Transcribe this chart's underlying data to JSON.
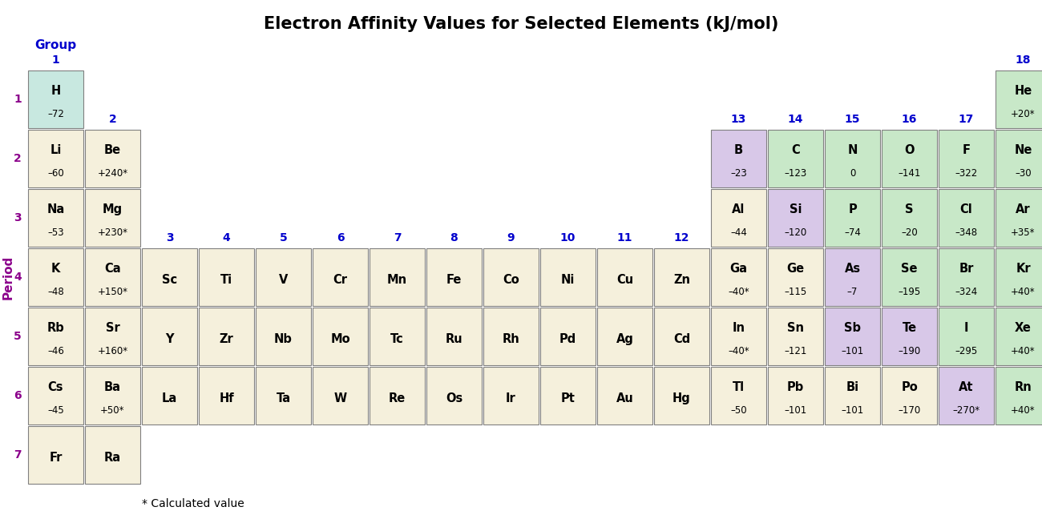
{
  "title": "Electron Affinity Values for Selected Elements (kJ/mol)",
  "title_fontsize": 15,
  "period_label": "Period",
  "group_label": "Group",
  "period_color": "#8B008B",
  "group_color": "#0000CD",
  "footnote": "* Calculated value",
  "elements": [
    {
      "symbol": "H",
      "value": "–72",
      "period": 1,
      "group": 1,
      "bg": "#C8E8E0"
    },
    {
      "symbol": "He",
      "value": "+20*",
      "period": 1,
      "group": 18,
      "bg": "#C8E8C8"
    },
    {
      "symbol": "Li",
      "value": "–60",
      "period": 2,
      "group": 1,
      "bg": "#F5F0DC"
    },
    {
      "symbol": "Be",
      "value": "+240*",
      "period": 2,
      "group": 2,
      "bg": "#F5F0DC"
    },
    {
      "symbol": "B",
      "value": "–23",
      "period": 2,
      "group": 13,
      "bg": "#D8C8E8"
    },
    {
      "symbol": "C",
      "value": "–123",
      "period": 2,
      "group": 14,
      "bg": "#C8E8C8"
    },
    {
      "symbol": "N",
      "value": "0",
      "period": 2,
      "group": 15,
      "bg": "#C8E8C8"
    },
    {
      "symbol": "O",
      "value": "–141",
      "period": 2,
      "group": 16,
      "bg": "#C8E8C8"
    },
    {
      "symbol": "F",
      "value": "–322",
      "period": 2,
      "group": 17,
      "bg": "#C8E8C8"
    },
    {
      "symbol": "Ne",
      "value": "–30",
      "period": 2,
      "group": 18,
      "bg": "#C8E8C8"
    },
    {
      "symbol": "Na",
      "value": "–53",
      "period": 3,
      "group": 1,
      "bg": "#F5F0DC"
    },
    {
      "symbol": "Mg",
      "value": "+230*",
      "period": 3,
      "group": 2,
      "bg": "#F5F0DC"
    },
    {
      "symbol": "Al",
      "value": "–44",
      "period": 3,
      "group": 13,
      "bg": "#F5F0DC"
    },
    {
      "symbol": "Si",
      "value": "–120",
      "period": 3,
      "group": 14,
      "bg": "#D8C8E8"
    },
    {
      "symbol": "P",
      "value": "–74",
      "period": 3,
      "group": 15,
      "bg": "#C8E8C8"
    },
    {
      "symbol": "S",
      "value": "–20",
      "period": 3,
      "group": 16,
      "bg": "#C8E8C8"
    },
    {
      "symbol": "Cl",
      "value": "–348",
      "period": 3,
      "group": 17,
      "bg": "#C8E8C8"
    },
    {
      "symbol": "Ar",
      "value": "+35*",
      "period": 3,
      "group": 18,
      "bg": "#C8E8C8"
    },
    {
      "symbol": "K",
      "value": "–48",
      "period": 4,
      "group": 1,
      "bg": "#F5F0DC"
    },
    {
      "symbol": "Ca",
      "value": "+150*",
      "period": 4,
      "group": 2,
      "bg": "#F5F0DC"
    },
    {
      "symbol": "Sc",
      "value": "",
      "period": 4,
      "group": 3,
      "bg": "#F5F0DC"
    },
    {
      "symbol": "Ti",
      "value": "",
      "period": 4,
      "group": 4,
      "bg": "#F5F0DC"
    },
    {
      "symbol": "V",
      "value": "",
      "period": 4,
      "group": 5,
      "bg": "#F5F0DC"
    },
    {
      "symbol": "Cr",
      "value": "",
      "period": 4,
      "group": 6,
      "bg": "#F5F0DC"
    },
    {
      "symbol": "Mn",
      "value": "",
      "period": 4,
      "group": 7,
      "bg": "#F5F0DC"
    },
    {
      "symbol": "Fe",
      "value": "",
      "period": 4,
      "group": 8,
      "bg": "#F5F0DC"
    },
    {
      "symbol": "Co",
      "value": "",
      "period": 4,
      "group": 9,
      "bg": "#F5F0DC"
    },
    {
      "symbol": "Ni",
      "value": "",
      "period": 4,
      "group": 10,
      "bg": "#F5F0DC"
    },
    {
      "symbol": "Cu",
      "value": "",
      "period": 4,
      "group": 11,
      "bg": "#F5F0DC"
    },
    {
      "symbol": "Zn",
      "value": "",
      "period": 4,
      "group": 12,
      "bg": "#F5F0DC"
    },
    {
      "symbol": "Ga",
      "value": "–40*",
      "period": 4,
      "group": 13,
      "bg": "#F5F0DC"
    },
    {
      "symbol": "Ge",
      "value": "–115",
      "period": 4,
      "group": 14,
      "bg": "#F5F0DC"
    },
    {
      "symbol": "As",
      "value": "–7",
      "period": 4,
      "group": 15,
      "bg": "#D8C8E8"
    },
    {
      "symbol": "Se",
      "value": "–195",
      "period": 4,
      "group": 16,
      "bg": "#C8E8C8"
    },
    {
      "symbol": "Br",
      "value": "–324",
      "period": 4,
      "group": 17,
      "bg": "#C8E8C8"
    },
    {
      "symbol": "Kr",
      "value": "+40*",
      "period": 4,
      "group": 18,
      "bg": "#C8E8C8"
    },
    {
      "symbol": "Rb",
      "value": "–46",
      "period": 5,
      "group": 1,
      "bg": "#F5F0DC"
    },
    {
      "symbol": "Sr",
      "value": "+160*",
      "period": 5,
      "group": 2,
      "bg": "#F5F0DC"
    },
    {
      "symbol": "Y",
      "value": "",
      "period": 5,
      "group": 3,
      "bg": "#F5F0DC"
    },
    {
      "symbol": "Zr",
      "value": "",
      "period": 5,
      "group": 4,
      "bg": "#F5F0DC"
    },
    {
      "symbol": "Nb",
      "value": "",
      "period": 5,
      "group": 5,
      "bg": "#F5F0DC"
    },
    {
      "symbol": "Mo",
      "value": "",
      "period": 5,
      "group": 6,
      "bg": "#F5F0DC"
    },
    {
      "symbol": "Tc",
      "value": "",
      "period": 5,
      "group": 7,
      "bg": "#F5F0DC"
    },
    {
      "symbol": "Ru",
      "value": "",
      "period": 5,
      "group": 8,
      "bg": "#F5F0DC"
    },
    {
      "symbol": "Rh",
      "value": "",
      "period": 5,
      "group": 9,
      "bg": "#F5F0DC"
    },
    {
      "symbol": "Pd",
      "value": "",
      "period": 5,
      "group": 10,
      "bg": "#F5F0DC"
    },
    {
      "symbol": "Ag",
      "value": "",
      "period": 5,
      "group": 11,
      "bg": "#F5F0DC"
    },
    {
      "symbol": "Cd",
      "value": "",
      "period": 5,
      "group": 12,
      "bg": "#F5F0DC"
    },
    {
      "symbol": "In",
      "value": "–40*",
      "period": 5,
      "group": 13,
      "bg": "#F5F0DC"
    },
    {
      "symbol": "Sn",
      "value": "–121",
      "period": 5,
      "group": 14,
      "bg": "#F5F0DC"
    },
    {
      "symbol": "Sb",
      "value": "–101",
      "period": 5,
      "group": 15,
      "bg": "#D8C8E8"
    },
    {
      "symbol": "Te",
      "value": "–190",
      "period": 5,
      "group": 16,
      "bg": "#D8C8E8"
    },
    {
      "symbol": "I",
      "value": "–295",
      "period": 5,
      "group": 17,
      "bg": "#C8E8C8"
    },
    {
      "symbol": "Xe",
      "value": "+40*",
      "period": 5,
      "group": 18,
      "bg": "#C8E8C8"
    },
    {
      "symbol": "Cs",
      "value": "–45",
      "period": 6,
      "group": 1,
      "bg": "#F5F0DC"
    },
    {
      "symbol": "Ba",
      "value": "+50*",
      "period": 6,
      "group": 2,
      "bg": "#F5F0DC"
    },
    {
      "symbol": "La",
      "value": "",
      "period": 6,
      "group": 3,
      "bg": "#F5F0DC"
    },
    {
      "symbol": "Hf",
      "value": "",
      "period": 6,
      "group": 4,
      "bg": "#F5F0DC"
    },
    {
      "symbol": "Ta",
      "value": "",
      "period": 6,
      "group": 5,
      "bg": "#F5F0DC"
    },
    {
      "symbol": "W",
      "value": "",
      "period": 6,
      "group": 6,
      "bg": "#F5F0DC"
    },
    {
      "symbol": "Re",
      "value": "",
      "period": 6,
      "group": 7,
      "bg": "#F5F0DC"
    },
    {
      "symbol": "Os",
      "value": "",
      "period": 6,
      "group": 8,
      "bg": "#F5F0DC"
    },
    {
      "symbol": "Ir",
      "value": "",
      "period": 6,
      "group": 9,
      "bg": "#F5F0DC"
    },
    {
      "symbol": "Pt",
      "value": "",
      "period": 6,
      "group": 10,
      "bg": "#F5F0DC"
    },
    {
      "symbol": "Au",
      "value": "",
      "period": 6,
      "group": 11,
      "bg": "#F5F0DC"
    },
    {
      "symbol": "Hg",
      "value": "",
      "period": 6,
      "group": 12,
      "bg": "#F5F0DC"
    },
    {
      "symbol": "Tl",
      "value": "–50",
      "period": 6,
      "group": 13,
      "bg": "#F5F0DC"
    },
    {
      "symbol": "Pb",
      "value": "–101",
      "period": 6,
      "group": 14,
      "bg": "#F5F0DC"
    },
    {
      "symbol": "Bi",
      "value": "–101",
      "period": 6,
      "group": 15,
      "bg": "#F5F0DC"
    },
    {
      "symbol": "Po",
      "value": "–170",
      "period": 6,
      "group": 16,
      "bg": "#F5F0DC"
    },
    {
      "symbol": "At",
      "value": "–270*",
      "period": 6,
      "group": 17,
      "bg": "#D8C8E8"
    },
    {
      "symbol": "Rn",
      "value": "+40*",
      "period": 6,
      "group": 18,
      "bg": "#C8E8C8"
    },
    {
      "symbol": "Fr",
      "value": "",
      "period": 7,
      "group": 1,
      "bg": "#F5F0DC"
    },
    {
      "symbol": "Ra",
      "value": "",
      "period": 7,
      "group": 2,
      "bg": "#F5F0DC"
    }
  ],
  "groups_shown": [
    1,
    2,
    3,
    4,
    5,
    6,
    7,
    8,
    9,
    10,
    11,
    12,
    13,
    14,
    15,
    16,
    17,
    18
  ]
}
